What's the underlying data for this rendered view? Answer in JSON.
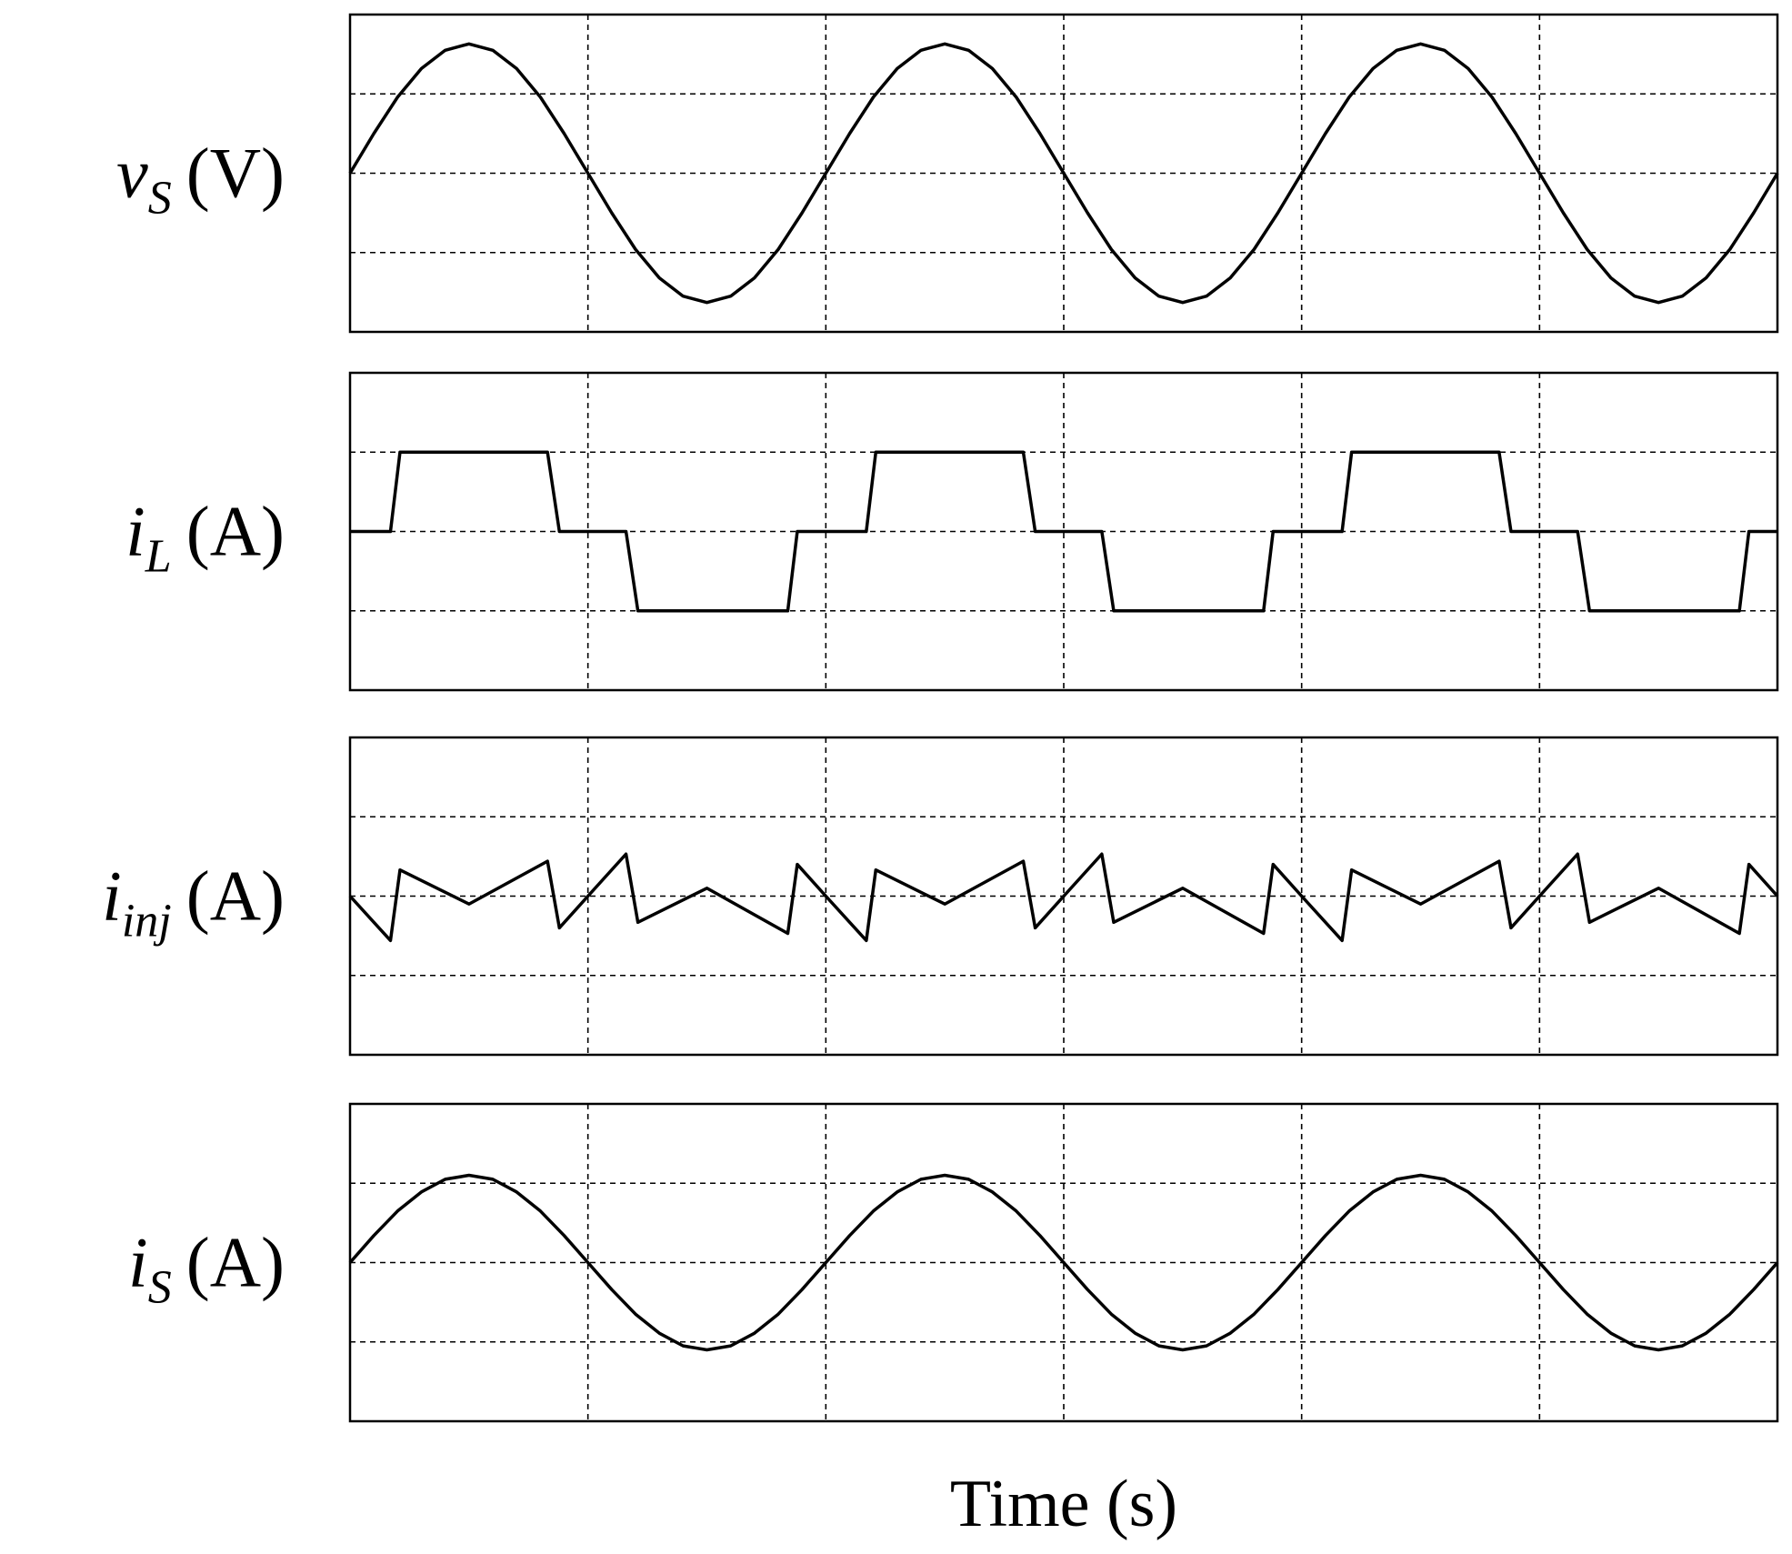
{
  "chart_data": [
    {
      "type": "line",
      "ylabel": {
        "symbol": "v",
        "subscript": "S",
        "unit": "(V)"
      },
      "color": "#000000",
      "grid": true,
      "xlim": [
        0,
        6
      ],
      "xticks": [
        1,
        2,
        3,
        4,
        5
      ],
      "ylim": [
        -2,
        2
      ],
      "yticks": [
        -1,
        0,
        1
      ],
      "x": [
        0,
        0.1,
        0.2,
        0.3,
        0.4,
        0.5,
        0.6,
        0.7,
        0.8,
        0.9,
        1,
        1.1,
        1.2,
        1.3,
        1.4,
        1.5,
        1.6,
        1.7,
        1.8,
        1.9,
        2,
        2.1,
        2.2,
        2.3,
        2.4,
        2.5,
        2.6,
        2.7,
        2.8,
        2.9,
        3,
        3.1,
        3.2,
        3.3,
        3.4,
        3.5,
        3.6,
        3.7,
        3.8,
        3.9,
        4,
        4.1,
        4.2,
        4.3,
        4.4,
        4.5,
        4.6,
        4.7,
        4.8,
        4.9,
        5,
        5.1,
        5.2,
        5.3,
        5.4,
        5.5,
        5.6,
        5.7,
        5.8,
        5.9,
        6
      ],
      "values": [
        0,
        0.5,
        0.96,
        1.32,
        1.55,
        1.63,
        1.55,
        1.32,
        0.96,
        0.5,
        0,
        -0.5,
        -0.96,
        -1.32,
        -1.55,
        -1.63,
        -1.55,
        -1.32,
        -0.96,
        -0.5,
        0,
        0.5,
        0.96,
        1.32,
        1.55,
        1.63,
        1.55,
        1.32,
        0.96,
        0.5,
        0,
        -0.5,
        -0.96,
        -1.32,
        -1.55,
        -1.63,
        -1.55,
        -1.32,
        -0.96,
        -0.5,
        0,
        0.5,
        0.96,
        1.32,
        1.55,
        1.63,
        1.55,
        1.32,
        0.96,
        0.5,
        0,
        -0.5,
        -0.96,
        -1.32,
        -1.55,
        -1.63,
        -1.55,
        -1.32,
        -0.96,
        -0.5,
        0
      ]
    },
    {
      "type": "line",
      "ylabel": {
        "symbol": "i",
        "subscript": "L",
        "unit": "(A)"
      },
      "color": "#000000",
      "grid": true,
      "xlim": [
        0,
        6
      ],
      "xticks": [
        1,
        2,
        3,
        4,
        5
      ],
      "ylim": [
        -2,
        2
      ],
      "yticks": [
        -1,
        0,
        1
      ],
      "x": [
        0,
        0.17,
        0.21,
        0.83,
        0.88,
        1.16,
        1.21,
        1.84,
        1.88,
        2.17,
        2.21,
        2.83,
        2.88,
        3.16,
        3.21,
        3.84,
        3.88,
        4.17,
        4.21,
        4.83,
        4.88,
        5.16,
        5.21,
        5.84,
        5.88,
        6
      ],
      "values": [
        0,
        0,
        1,
        1,
        0,
        0,
        -1,
        -1,
        0,
        0,
        1,
        1,
        0,
        0,
        -1,
        -1,
        0,
        0,
        1,
        1,
        0,
        0,
        -1,
        -1,
        0,
        0
      ]
    },
    {
      "type": "line",
      "ylabel": {
        "symbol": "i",
        "subscript": "inj",
        "unit": "(A)"
      },
      "color": "#000000",
      "grid": true,
      "xlim": [
        0,
        6
      ],
      "xticks": [
        1,
        2,
        3,
        4,
        5
      ],
      "ylim": [
        -2,
        2
      ],
      "yticks": [
        -1,
        0,
        1
      ],
      "x": [
        0,
        0.17,
        0.21,
        0.5,
        0.83,
        0.88,
        1,
        1.16,
        1.21,
        1.5,
        1.84,
        1.88,
        2,
        2.17,
        2.21,
        2.5,
        2.83,
        2.88,
        3,
        3.16,
        3.21,
        3.5,
        3.84,
        3.88,
        4,
        4.17,
        4.21,
        4.5,
        4.83,
        4.88,
        5,
        5.16,
        5.21,
        5.5,
        5.84,
        5.88,
        6
      ],
      "values": [
        0,
        -0.56,
        0.33,
        -0.1,
        0.44,
        -0.4,
        0,
        0.53,
        -0.33,
        0.1,
        -0.47,
        0.4,
        0,
        -0.56,
        0.33,
        -0.1,
        0.44,
        -0.4,
        0,
        0.53,
        -0.33,
        0.1,
        -0.47,
        0.4,
        0,
        -0.56,
        0.33,
        -0.1,
        0.44,
        -0.4,
        0,
        0.53,
        -0.33,
        0.1,
        -0.47,
        0.4,
        0
      ]
    },
    {
      "type": "line",
      "ylabel": {
        "symbol": "i",
        "subscript": "S",
        "unit": "(A)"
      },
      "xlabel": "Time (s)",
      "color": "#000000",
      "grid": true,
      "xlim": [
        0,
        6
      ],
      "xticks": [
        1,
        2,
        3,
        4,
        5
      ],
      "ylim": [
        -2,
        2
      ],
      "yticks": [
        -1,
        0,
        1
      ],
      "x": [
        0,
        0.1,
        0.2,
        0.3,
        0.4,
        0.5,
        0.6,
        0.7,
        0.8,
        0.9,
        1,
        1.1,
        1.2,
        1.3,
        1.4,
        1.5,
        1.6,
        1.7,
        1.8,
        1.9,
        2,
        2.1,
        2.2,
        2.3,
        2.4,
        2.5,
        2.6,
        2.7,
        2.8,
        2.9,
        3,
        3.1,
        3.2,
        3.3,
        3.4,
        3.5,
        3.6,
        3.7,
        3.8,
        3.9,
        4,
        4.1,
        4.2,
        4.3,
        4.4,
        4.5,
        4.6,
        4.7,
        4.8,
        4.9,
        5,
        5.1,
        5.2,
        5.3,
        5.4,
        5.5,
        5.6,
        5.7,
        5.8,
        5.9,
        6
      ],
      "values": [
        0,
        0.34,
        0.65,
        0.89,
        1.05,
        1.1,
        1.05,
        0.89,
        0.65,
        0.34,
        0,
        -0.34,
        -0.65,
        -0.89,
        -1.05,
        -1.1,
        -1.05,
        -0.89,
        -0.65,
        -0.34,
        0,
        0.34,
        0.65,
        0.89,
        1.05,
        1.1,
        1.05,
        0.89,
        0.65,
        0.34,
        0,
        -0.34,
        -0.65,
        -0.89,
        -1.05,
        -1.1,
        -1.05,
        -0.89,
        -0.65,
        -0.34,
        0,
        0.34,
        0.65,
        0.89,
        1.05,
        1.1,
        1.05,
        0.89,
        0.65,
        0.34,
        0,
        -0.34,
        -0.65,
        -0.89,
        -1.05,
        -1.1,
        -1.05,
        -0.89,
        -0.65,
        -0.34,
        0
      ]
    }
  ]
}
